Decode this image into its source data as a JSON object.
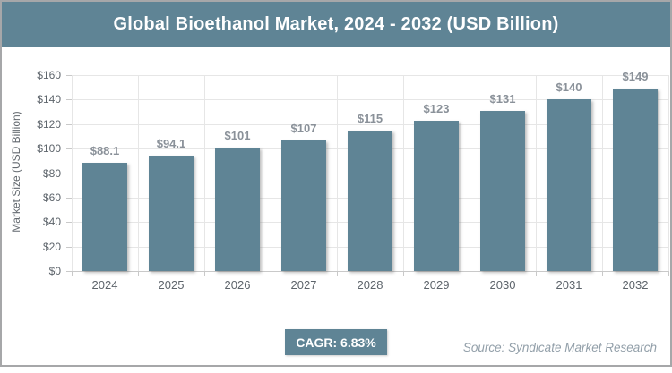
{
  "header": {
    "title": "Global Bioethanol Market, 2024 - 2032 (USD Billion)"
  },
  "chart_data": {
    "type": "bar",
    "title": "Global Bioethanol Market, 2024 - 2032 (USD Billion)",
    "categories": [
      "2024",
      "2025",
      "2026",
      "2027",
      "2028",
      "2029",
      "2030",
      "2031",
      "2032"
    ],
    "values": [
      88.1,
      94.1,
      101,
      107,
      115,
      123,
      131,
      140,
      149
    ],
    "bar_labels": [
      "$88.1",
      "$94.1",
      "$101",
      "$107",
      "$115",
      "$123",
      "$131",
      "$140",
      "$149"
    ],
    "xlabel": "",
    "ylabel": "Market Size (USD Billion)",
    "ylim": [
      0,
      160
    ],
    "ytick_step": 20,
    "ytick_prefix": "$",
    "grid": true,
    "legend": false
  },
  "footer": {
    "cagr_badge": "CAGR: 6.83%",
    "source": "Source: Syndicate Market Research"
  },
  "colors": {
    "accent_teal": "#5f8495",
    "grid_line": "#e6e6e6",
    "axis_line": "#c9c9c9",
    "tick_label": "#5d646b",
    "bar_value_label": "#8a9199",
    "source_text": "#929fa9",
    "card_border": "#a6a7a9",
    "title_text": "#ffffff"
  }
}
